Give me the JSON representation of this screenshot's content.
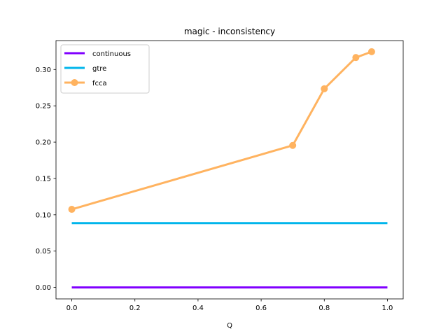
{
  "chart_data": {
    "type": "line",
    "title": "magic - inconsistency",
    "xlabel": "Q",
    "ylabel": "",
    "xlim": [
      -0.05,
      1.05
    ],
    "ylim": [
      -0.0158,
      0.3398
    ],
    "xticks": [
      0.0,
      0.2,
      0.4,
      0.6,
      0.8,
      1.0
    ],
    "xtick_labels": [
      "0.0",
      "0.2",
      "0.4",
      "0.6",
      "0.8",
      "1.0"
    ],
    "yticks": [
      0.0,
      0.05,
      0.1,
      0.15,
      0.2,
      0.25,
      0.3
    ],
    "ytick_labels": [
      "0.00",
      "0.05",
      "0.10",
      "0.15",
      "0.20",
      "0.25",
      "0.30"
    ],
    "grid": false,
    "legend_position": "top-left",
    "series": [
      {
        "name": "continuous",
        "color": "#8000ff",
        "marker": false,
        "x": [
          0.0,
          1.0
        ],
        "y": [
          0.0,
          0.0
        ]
      },
      {
        "name": "gtre",
        "color": "#00b5eb",
        "marker": false,
        "x": [
          0.0,
          1.0
        ],
        "y": [
          0.0885,
          0.0885
        ]
      },
      {
        "name": "fcca",
        "color": "#ffb360",
        "marker": true,
        "x": [
          0.0,
          0.7,
          0.8,
          0.9,
          0.95
        ],
        "y": [
          0.1075,
          0.1955,
          0.2735,
          0.3165,
          0.3245
        ]
      }
    ]
  }
}
